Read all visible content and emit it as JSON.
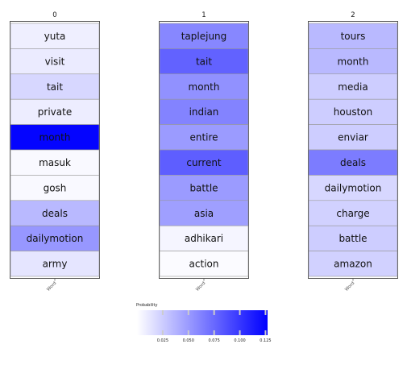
{
  "chart_data": {
    "type": "heatmap",
    "columns": [
      {
        "title": "0",
        "words": [
          "yuta",
          "visit",
          "tait",
          "private",
          "month",
          "masuk",
          "gosh",
          "deals",
          "dailymotion",
          "army"
        ],
        "values": [
          0.008,
          0.01,
          0.02,
          0.009,
          0.125,
          0.003,
          0.003,
          0.035,
          0.052,
          0.013
        ],
        "xtick": "Word"
      },
      {
        "title": "1",
        "words": [
          "taplejung",
          "tait",
          "month",
          "indian",
          "entire",
          "current",
          "battle",
          "asia",
          "adhikari",
          "action"
        ],
        "values": [
          0.06,
          0.078,
          0.055,
          0.062,
          0.05,
          0.08,
          0.05,
          0.048,
          0.005,
          0.002
        ],
        "xtick": "Word"
      },
      {
        "title": "2",
        "words": [
          "tours",
          "month",
          "media",
          "houston",
          "enviar",
          "deals",
          "dailymotion",
          "charge",
          "battle",
          "amazon"
        ],
        "values": [
          0.035,
          0.035,
          0.025,
          0.025,
          0.025,
          0.065,
          0.02,
          0.023,
          0.025,
          0.023
        ],
        "xtick": "Word"
      }
    ],
    "colorbar": {
      "label": "Probability",
      "ticks": [
        "0.025",
        "0.050",
        "0.075",
        "0.100",
        "0.125"
      ],
      "tick_values": [
        0.025,
        0.05,
        0.075,
        0.1,
        0.125
      ],
      "vmin": 0,
      "vmax": 0.127
    },
    "colors": {
      "low": "#ffffff",
      "high": "#0000ff",
      "frame": "#555555",
      "cell_border": "#999999"
    }
  }
}
